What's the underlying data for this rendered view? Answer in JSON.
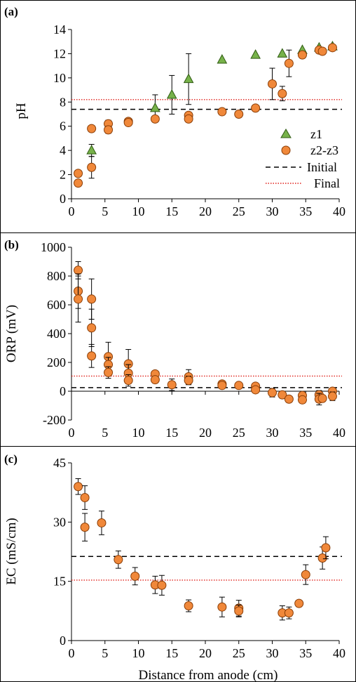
{
  "colors": {
    "z1_fill": "#77b24a",
    "z1_stroke": "#2f5a12",
    "z2z3_fill": "#f0883a",
    "z2z3_stroke": "#8a3d06",
    "initial_line": "#000000",
    "final_line": "#e0201a"
  },
  "chart_data": [
    {
      "type": "scatter",
      "panel_label": "(a)",
      "ylabel": "pH",
      "xlabel": "",
      "xlim": [
        0,
        40
      ],
      "ylim": [
        0,
        14
      ],
      "xticks": [
        "0",
        "5",
        "10",
        "15",
        "20",
        "25",
        "30",
        "35",
        "40"
      ],
      "yticks": [
        "0",
        "2",
        "4",
        "6",
        "8",
        "10",
        "12",
        "14"
      ],
      "reference_lines": [
        {
          "name": "Initial",
          "y": 7.4,
          "style": "dashed"
        },
        {
          "name": "Final",
          "y": 8.2,
          "style": "dotted"
        }
      ],
      "legend": {
        "placement": "right",
        "entries": [
          "z1",
          "z2-z3",
          "Initial",
          "Final"
        ]
      },
      "series": [
        {
          "name": "z1",
          "marker": "triangle",
          "points": [
            {
              "x": 3,
              "y": 4.0,
              "err": 0.5
            },
            {
              "x": 12.5,
              "y": 7.5,
              "err": 1.1
            },
            {
              "x": 15,
              "y": 8.6,
              "err": 1.6
            },
            {
              "x": 17.5,
              "y": 9.9,
              "err": 2.1
            },
            {
              "x": 22.5,
              "y": 11.5,
              "err": 0
            },
            {
              "x": 27.5,
              "y": 11.9,
              "err": 0
            },
            {
              "x": 31.5,
              "y": 12.0,
              "err": 0
            },
            {
              "x": 34.5,
              "y": 12.3,
              "err": 0
            },
            {
              "x": 37,
              "y": 12.5,
              "err": 0
            },
            {
              "x": 39,
              "y": 12.6,
              "err": 0
            }
          ]
        },
        {
          "name": "z2-z3",
          "marker": "circle",
          "points": [
            {
              "x": 1,
              "y": 2.1,
              "err": 0
            },
            {
              "x": 1,
              "y": 1.3,
              "err": 0
            },
            {
              "x": 3,
              "y": 5.8,
              "err": 0
            },
            {
              "x": 3,
              "y": 2.6,
              "err": 0.9
            },
            {
              "x": 5.5,
              "y": 6.2,
              "err": 0.3
            },
            {
              "x": 5.5,
              "y": 5.7,
              "err": 0.3
            },
            {
              "x": 8.5,
              "y": 6.4,
              "err": 0
            },
            {
              "x": 8.5,
              "y": 6.3,
              "err": 0
            },
            {
              "x": 12.5,
              "y": 6.6,
              "err": 0
            },
            {
              "x": 17.5,
              "y": 6.9,
              "err": 0
            },
            {
              "x": 17.5,
              "y": 6.6,
              "err": 0
            },
            {
              "x": 22.5,
              "y": 7.2,
              "err": 0
            },
            {
              "x": 25,
              "y": 7.0,
              "err": 0
            },
            {
              "x": 27.5,
              "y": 7.5,
              "err": 0
            },
            {
              "x": 30,
              "y": 9.5,
              "err": 1.3
            },
            {
              "x": 31.5,
              "y": 8.7,
              "err": 0.6
            },
            {
              "x": 32.5,
              "y": 11.2,
              "err": 1.1
            },
            {
              "x": 34.5,
              "y": 11.9,
              "err": 0
            },
            {
              "x": 37,
              "y": 12.3,
              "err": 0
            },
            {
              "x": 37.5,
              "y": 12.2,
              "err": 0
            },
            {
              "x": 39,
              "y": 12.5,
              "err": 0
            }
          ]
        }
      ]
    },
    {
      "type": "scatter",
      "panel_label": "(b)",
      "ylabel": "ORP (mV)",
      "xlabel": "",
      "xlim": [
        0,
        40
      ],
      "ylim": [
        -200,
        1000
      ],
      "xticks": [
        "0",
        "5",
        "10",
        "15",
        "20",
        "25",
        "30",
        "35",
        "40"
      ],
      "yticks": [
        "-200",
        "0",
        "200",
        "400",
        "600",
        "800",
        "1000"
      ],
      "reference_lines": [
        {
          "name": "Initial",
          "y": 25,
          "style": "dashed"
        },
        {
          "name": "Final",
          "y": 105,
          "style": "dotted"
        }
      ],
      "series": [
        {
          "name": "z2-z3",
          "marker": "circle",
          "points": [
            {
              "x": 1,
              "y": 840,
              "err": 60
            },
            {
              "x": 1,
              "y": 695,
              "err": 120
            },
            {
              "x": 1,
              "y": 640,
              "err": 160
            },
            {
              "x": 3,
              "y": 640,
              "err": 140
            },
            {
              "x": 3,
              "y": 440,
              "err": 130
            },
            {
              "x": 3,
              "y": 245,
              "err": 80
            },
            {
              "x": 5.5,
              "y": 240,
              "err": 100
            },
            {
              "x": 5.5,
              "y": 185,
              "err": 50
            },
            {
              "x": 5.5,
              "y": 130,
              "err": 40
            },
            {
              "x": 8.5,
              "y": 190,
              "err": 100
            },
            {
              "x": 8.5,
              "y": 125,
              "err": 60
            },
            {
              "x": 8.5,
              "y": 75,
              "err": 40
            },
            {
              "x": 12.5,
              "y": 120,
              "err": 20
            },
            {
              "x": 12.5,
              "y": 80,
              "err": 20
            },
            {
              "x": 15,
              "y": 45,
              "err": 40
            },
            {
              "x": 17.5,
              "y": 100,
              "err": 50
            },
            {
              "x": 17.5,
              "y": 75,
              "err": 30
            },
            {
              "x": 22.5,
              "y": 50,
              "err": 20
            },
            {
              "x": 22.5,
              "y": 40,
              "err": 15
            },
            {
              "x": 25,
              "y": 40,
              "err": 10
            },
            {
              "x": 27.5,
              "y": 35,
              "err": 20
            },
            {
              "x": 27.5,
              "y": 10,
              "err": 20
            },
            {
              "x": 30,
              "y": -10,
              "err": 30
            },
            {
              "x": 31.5,
              "y": -25,
              "err": 20
            },
            {
              "x": 32.5,
              "y": -55,
              "err": 10
            },
            {
              "x": 34.5,
              "y": -30,
              "err": 30
            },
            {
              "x": 34.5,
              "y": -60,
              "err": 20
            },
            {
              "x": 37,
              "y": -25,
              "err": 30
            },
            {
              "x": 37,
              "y": -55,
              "err": 40
            },
            {
              "x": 37.5,
              "y": -50,
              "err": 20
            },
            {
              "x": 39,
              "y": 0,
              "err": 20
            },
            {
              "x": 39,
              "y": -35,
              "err": 30
            }
          ]
        }
      ]
    },
    {
      "type": "scatter",
      "panel_label": "(c)",
      "ylabel": "EC (mS/cm)",
      "xlabel": "Distance from anode (cm)",
      "xlim": [
        0,
        40
      ],
      "ylim": [
        0,
        45
      ],
      "xticks": [
        "0",
        "5",
        "10",
        "15",
        "20",
        "25",
        "30",
        "35",
        "40"
      ],
      "yticks": [
        "0",
        "15",
        "30",
        "45"
      ],
      "reference_lines": [
        {
          "name": "Initial",
          "y": 21.3,
          "style": "dashed"
        },
        {
          "name": "Final",
          "y": 15.3,
          "style": "dotted"
        }
      ],
      "series": [
        {
          "name": "z2-z3",
          "marker": "circle",
          "points": [
            {
              "x": 1,
              "y": 39.0,
              "err": 2.0
            },
            {
              "x": 2,
              "y": 36.2,
              "err": 3.0
            },
            {
              "x": 2,
              "y": 28.7,
              "err": 3.5
            },
            {
              "x": 4.5,
              "y": 29.8,
              "err": 3.0
            },
            {
              "x": 7,
              "y": 20.5,
              "err": 2.2
            },
            {
              "x": 9.5,
              "y": 16.3,
              "err": 2.2
            },
            {
              "x": 12.5,
              "y": 14.1,
              "err": 2.2
            },
            {
              "x": 13.5,
              "y": 14.0,
              "err": 2.5
            },
            {
              "x": 17.5,
              "y": 8.8,
              "err": 1.5
            },
            {
              "x": 22.5,
              "y": 8.5,
              "err": 2.5
            },
            {
              "x": 25,
              "y": 8.2,
              "err": 2.0
            },
            {
              "x": 25,
              "y": 7.5,
              "err": 1.5
            },
            {
              "x": 31.5,
              "y": 7.0,
              "err": 1.8
            },
            {
              "x": 32.5,
              "y": 7.0,
              "err": 1.5
            },
            {
              "x": 34,
              "y": 9.4,
              "err": 0
            },
            {
              "x": 35,
              "y": 16.7,
              "err": 2.5
            },
            {
              "x": 37.5,
              "y": 20.9,
              "err": 2.8
            },
            {
              "x": 38,
              "y": 23.5,
              "err": 2.8
            }
          ]
        }
      ]
    }
  ]
}
